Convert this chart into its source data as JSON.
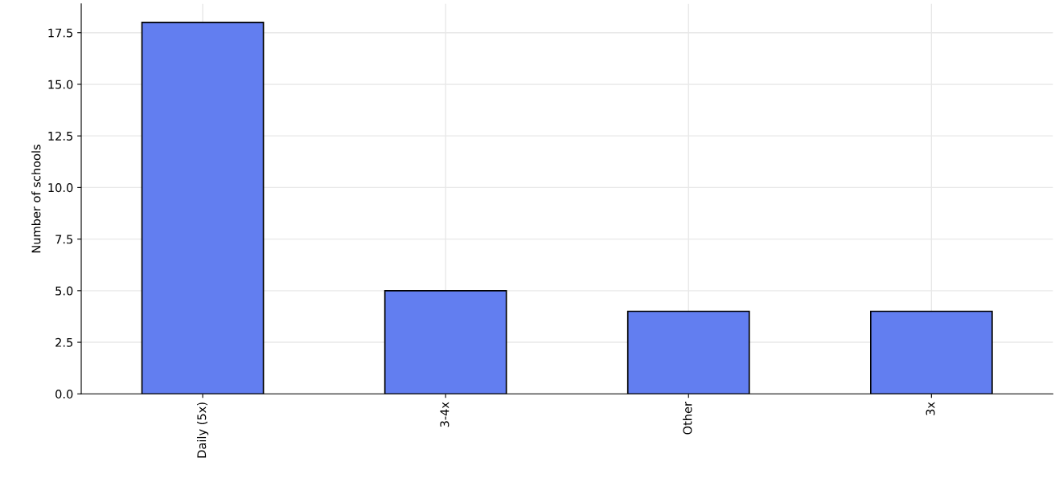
{
  "chart_data": {
    "type": "bar",
    "ylabel": "Number of schools",
    "categories": [
      "Daily (5x)",
      "3-4x",
      "Other",
      "3x"
    ],
    "values": [
      18,
      5,
      4,
      4
    ],
    "color": "#627ef0",
    "ylim": [
      0,
      18.9
    ],
    "yticks": [
      {
        "value": 0,
        "label": "0.0"
      },
      {
        "value": 2.5,
        "label": "2.5"
      },
      {
        "value": 5,
        "label": "5.0"
      },
      {
        "value": 7.5,
        "label": "7.5"
      },
      {
        "value": 10,
        "label": "10.0"
      },
      {
        "value": 12.5,
        "label": "12.5"
      },
      {
        "value": 15,
        "label": "15.0"
      },
      {
        "value": 17.5,
        "label": "17.5"
      }
    ],
    "grid": true
  }
}
